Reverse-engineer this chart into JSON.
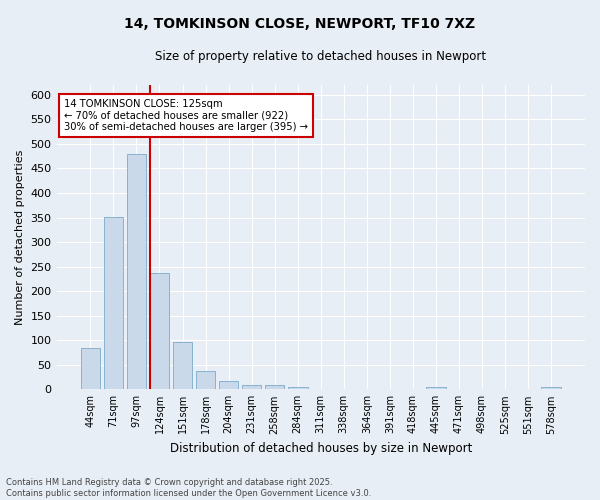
{
  "title": "14, TOMKINSON CLOSE, NEWPORT, TF10 7XZ",
  "subtitle": "Size of property relative to detached houses in Newport",
  "xlabel": "Distribution of detached houses by size in Newport",
  "ylabel": "Number of detached properties",
  "bar_color": "#c9d9ea",
  "bar_edge_color": "#7aaac8",
  "background_color": "#e8eef5",
  "grid_color": "#ffffff",
  "fig_background": "#e8eef5",
  "categories": [
    "44sqm",
    "71sqm",
    "97sqm",
    "124sqm",
    "151sqm",
    "178sqm",
    "204sqm",
    "231sqm",
    "258sqm",
    "284sqm",
    "311sqm",
    "338sqm",
    "364sqm",
    "391sqm",
    "418sqm",
    "445sqm",
    "471sqm",
    "498sqm",
    "525sqm",
    "551sqm",
    "578sqm"
  ],
  "values": [
    84,
    352,
    480,
    237,
    96,
    37,
    16,
    8,
    8,
    5,
    0,
    0,
    0,
    0,
    0,
    5,
    0,
    0,
    0,
    0,
    5
  ],
  "property_bar_index": 3,
  "annotation_line1": "14 TOMKINSON CLOSE: 125sqm",
  "annotation_line2": "← 70% of detached houses are smaller (922)",
  "annotation_line3": "30% of semi-detached houses are larger (395) →",
  "annotation_box_color": "#ffffff",
  "annotation_border_color": "#cc0000",
  "redline_color": "#cc0000",
  "ylim": [
    0,
    620
  ],
  "yticks": [
    0,
    50,
    100,
    150,
    200,
    250,
    300,
    350,
    400,
    450,
    500,
    550,
    600
  ],
  "footer_line1": "Contains HM Land Registry data © Crown copyright and database right 2025.",
  "footer_line2": "Contains public sector information licensed under the Open Government Licence v3.0."
}
